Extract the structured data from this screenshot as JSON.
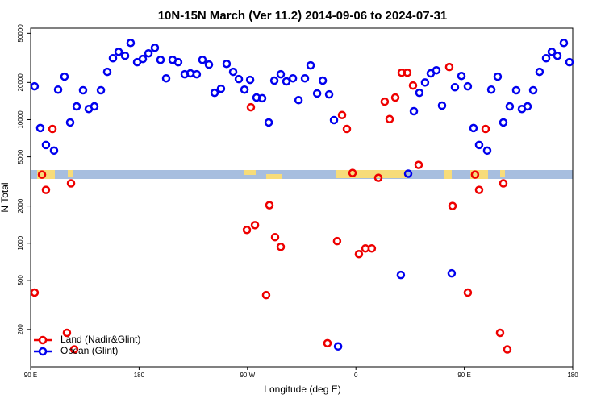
{
  "chart_data": {
    "type": "scatter",
    "title": "10N-15N March (Ver 11.2)   2014-09-06 to 2024-07-31",
    "x_label": "Longitude (deg E)",
    "y_label": "N Total",
    "xlim": [
      90,
      540
    ],
    "xticks": [
      {
        "value": 90,
        "label": "90 E"
      },
      180,
      {
        "value": 270,
        "label": "90 W"
      },
      {
        "value": 360,
        "label": "0"
      },
      {
        "value": 450,
        "label": "90 E"
      },
      {
        "value": 540,
        "label": "180"
      }
    ],
    "ylim": [
      100,
      55000
    ],
    "y_log": true,
    "yticks": [
      200,
      500,
      1000,
      2000,
      5000,
      10000,
      20000,
      50000
    ],
    "legend": "bottomleft",
    "series": [
      {
        "name": "Land (Nadir&Glint)",
        "color": "#ee0000",
        "x": [
          93.3,
          99.4,
          102.7,
          108.1,
          120.1,
          123.5,
          126.2,
          269.5,
          272.8,
          276.2,
          285.5,
          288.2,
          292.9,
          297.6,
          336.4,
          344.4,
          348.5,
          352.5,
          357.2,
          362.5,
          367.9,
          373.2,
          378.6,
          383.9,
          388.0,
          392.7,
          398.0,
          402.7,
          407.4,
          412.1,
          437.5,
          440.2,
          452.9,
          458.9,
          462.3,
          467.7,
          479.7,
          482.4,
          485.7
        ],
        "values": [
          398,
          3590,
          2700,
          8410,
          188,
          3050,
          138,
          1280,
          12600,
          1400,
          380,
          2030,
          1120,
          934,
          155,
          1040,
          10900,
          8410,
          3700,
          816,
          906,
          906,
          3380,
          14000,
          10100,
          15100,
          24000,
          24000,
          18900,
          4300,
          26700,
          2000,
          398,
          3590,
          2700,
          8410,
          188,
          3050,
          138
        ]
      },
      {
        "name": "Ocean (Glint)",
        "color": "#0000ee",
        "x": [
          93.3,
          98.0,
          102.7,
          109.4,
          112.8,
          118.1,
          122.8,
          128.2,
          133.5,
          138.2,
          142.9,
          148.3,
          153.6,
          158.3,
          163.0,
          168.4,
          173.0,
          178.4,
          183.1,
          187.8,
          193.1,
          197.8,
          202.5,
          207.8,
          212.5,
          217.9,
          222.6,
          227.9,
          232.6,
          238.0,
          242.7,
          248.0,
          252.7,
          258.1,
          262.8,
          267.5,
          272.2,
          277.5,
          282.2,
          287.6,
          292.3,
          297.6,
          302.3,
          307.7,
          312.4,
          317.7,
          322.4,
          327.8,
          332.5,
          337.8,
          341.8,
          345.2,
          397.3,
          403.4,
          408.1,
          412.7,
          417.4,
          422.1,
          426.8,
          431.5,
          439.5,
          442.2,
          447.6,
          452.9,
          457.6,
          462.3,
          469.0,
          472.4,
          477.7,
          482.4,
          487.7,
          493.1,
          497.8,
          502.5,
          507.2,
          512.5,
          517.9,
          522.6,
          527.3,
          532.6,
          537.3
        ],
        "values": [
          18600,
          8550,
          6240,
          5620,
          17500,
          22300,
          9490,
          12800,
          17300,
          12200,
          12800,
          17300,
          24400,
          31400,
          35400,
          32900,
          41800,
          29200,
          31000,
          34400,
          38200,
          30500,
          21600,
          30500,
          29200,
          23300,
          23700,
          23300,
          30500,
          27900,
          16500,
          17800,
          28300,
          24400,
          21300,
          17500,
          21000,
          15100,
          14900,
          9490,
          20700,
          23300,
          20400,
          21600,
          14400,
          21600,
          27500,
          16300,
          20700,
          16000,
          9930,
          146,
          553,
          3650,
          11700,
          16500,
          20000,
          23700,
          25100,
          13000,
          570,
          18300,
          22600,
          18600,
          8550,
          6240,
          5620,
          17500,
          22300,
          9490,
          12800,
          17300,
          12200,
          12800,
          17300,
          24400,
          31400,
          35400,
          32900,
          41800,
          29200
        ]
      }
    ]
  }
}
